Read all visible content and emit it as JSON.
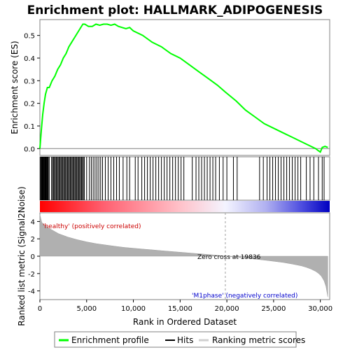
{
  "chart_data": {
    "type": "line",
    "title": "Enrichment plot: HALLMARK_ADIPOGENESIS",
    "xlabel": "Rank in Ordered Dataset",
    "ylabel_top": "Enrichment score (ES)",
    "ylabel_bottom": "Ranked list metric (Signal2Noise)",
    "xlim": [
      0,
      31000
    ],
    "x_ticks": [
      0,
      5000,
      10000,
      15000,
      20000,
      25000,
      30000
    ],
    "x_tick_labels": [
      "0",
      "5,000",
      "10,000",
      "15,000",
      "20,000",
      "25,000",
      "30,000"
    ],
    "es_ylim": [
      -0.03,
      0.57
    ],
    "es_ticks": [
      0.0,
      0.1,
      0.2,
      0.3,
      0.4,
      0.5
    ],
    "es_tick_labels": [
      "0.0",
      "0.1",
      "0.2",
      "0.3",
      "0.4",
      "0.5"
    ],
    "metric_ylim": [
      -5,
      5
    ],
    "metric_ticks": [
      -4,
      -2,
      0,
      2,
      4
    ],
    "metric_tick_labels": [
      "-4",
      "-2",
      "0",
      "2",
      "4"
    ],
    "zero_cross": 19836,
    "zero_cross_label": "Zero cross at 19836",
    "positive_label": "'healthy' (positively correlated)",
    "negative_label": "'M1phase' (negatively correlated)",
    "series": [
      {
        "name": "Enrichment profile",
        "color": "#00ff00",
        "x": [
          0,
          150,
          300,
          450,
          600,
          800,
          1000,
          1300,
          1600,
          1900,
          2200,
          2500,
          2800,
          3100,
          3400,
          3700,
          4000,
          4300,
          4600,
          4800,
          5200,
          5600,
          6000,
          6400,
          6800,
          7200,
          7600,
          8000,
          8400,
          8800,
          9200,
          9600,
          10000,
          11000,
          12000,
          13000,
          14000,
          15000,
          16000,
          17000,
          18000,
          19000,
          19836,
          21000,
          22000,
          23000,
          24000,
          25000,
          26000,
          27000,
          28000,
          29000,
          29500,
          29800,
          30000,
          30200,
          30500,
          30800
        ],
        "values": [
          0.0,
          0.08,
          0.15,
          0.2,
          0.24,
          0.27,
          0.27,
          0.3,
          0.32,
          0.35,
          0.37,
          0.4,
          0.42,
          0.45,
          0.47,
          0.49,
          0.51,
          0.53,
          0.55,
          0.55,
          0.54,
          0.54,
          0.55,
          0.545,
          0.55,
          0.55,
          0.545,
          0.55,
          0.54,
          0.535,
          0.53,
          0.535,
          0.52,
          0.5,
          0.47,
          0.45,
          0.42,
          0.4,
          0.37,
          0.34,
          0.31,
          0.28,
          0.25,
          0.21,
          0.17,
          0.14,
          0.11,
          0.09,
          0.07,
          0.05,
          0.03,
          0.01,
          0.0,
          -0.01,
          -0.015,
          0.005,
          0.01,
          0.005
        ]
      },
      {
        "name": "Hits",
        "color": "#000000",
        "x": [
          60,
          120,
          180,
          240,
          300,
          360,
          420,
          480,
          540,
          600,
          660,
          720,
          780,
          840,
          900,
          1000,
          1250,
          1350,
          1450,
          1550,
          1650,
          1750,
          1850,
          1950,
          2050,
          2150,
          2250,
          2350,
          2450,
          2550,
          2650,
          2750,
          2850,
          2950,
          3050,
          3150,
          3250,
          3350,
          3450,
          3550,
          3650,
          3750,
          3850,
          3950,
          4050,
          4150,
          4250,
          4350,
          4450,
          4550,
          4650,
          4750,
          5000,
          5300,
          5500,
          5700,
          5900,
          6100,
          6300,
          6500,
          6700,
          7000,
          7300,
          7600,
          7900,
          8200,
          8500,
          8900,
          9300,
          9600,
          10200,
          10500,
          10900,
          11200,
          11500,
          11800,
          12100,
          12400,
          12700,
          13000,
          13300,
          13600,
          13900,
          14200,
          14500,
          14800,
          15100,
          15400,
          16300,
          16700,
          17000,
          17300,
          17600,
          17900,
          18200,
          18500,
          18800,
          19200,
          19600,
          20000,
          20700,
          21100,
          23500,
          23900,
          24300,
          24600,
          24900,
          25200,
          25500,
          25800,
          26100,
          26400,
          26700,
          27000,
          27300,
          27600,
          27900,
          28500,
          28900,
          29300,
          29800,
          30200,
          30400
        ]
      },
      {
        "name": "Ranking metric scores",
        "color": "#c0c0c0",
        "x": [
          0,
          200,
          500,
          1000,
          2000,
          3000,
          4000,
          5000,
          6000,
          7000,
          8000,
          9000,
          10000,
          11000,
          12000,
          13000,
          14000,
          15000,
          16000,
          17000,
          18000,
          19000,
          19836,
          21000,
          22000,
          23000,
          24000,
          25000,
          26000,
          27000,
          28000,
          28500,
          29000,
          29500,
          29800,
          30100,
          30400,
          30600,
          30800
        ],
        "values": [
          4.8,
          3.9,
          3.6,
          3.2,
          2.6,
          2.2,
          1.9,
          1.65,
          1.45,
          1.3,
          1.15,
          1.02,
          0.92,
          0.82,
          0.73,
          0.64,
          0.55,
          0.46,
          0.37,
          0.28,
          0.2,
          0.1,
          0.0,
          -0.12,
          -0.22,
          -0.33,
          -0.45,
          -0.58,
          -0.72,
          -0.9,
          -1.12,
          -1.28,
          -1.48,
          -1.75,
          -1.98,
          -2.3,
          -2.85,
          -3.5,
          -4.7
        ]
      }
    ],
    "legend": [
      "Enrichment profile",
      "Hits",
      "Ranking metric scores"
    ]
  }
}
